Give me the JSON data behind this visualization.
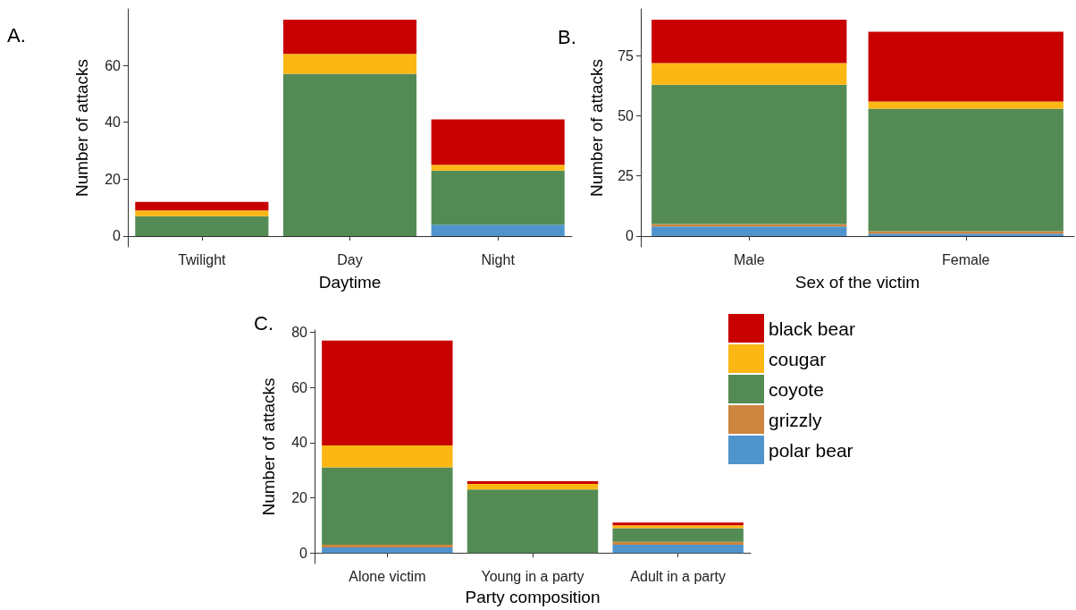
{
  "chart_data": [
    {
      "type": "bar",
      "stacked": true,
      "annotations": [
        "A."
      ],
      "xlabel": "Daytime",
      "ylabel": "Number of attacks",
      "categories": [
        "Twilight",
        "Day",
        "Night"
      ],
      "ylim": [
        -3.8,
        79.8
      ],
      "yticks": [
        0,
        20,
        40,
        60
      ],
      "grid": false,
      "legend": false,
      "series": [
        {
          "color": "#4f94cd",
          "values": [
            0,
            0,
            4
          ]
        },
        {
          "color": "#cd853f",
          "values": [
            0,
            0,
            0
          ]
        },
        {
          "color": "#548b54",
          "values": [
            7,
            57,
            19
          ]
        },
        {
          "color": "#fdb714",
          "values": [
            2,
            7,
            2
          ]
        },
        {
          "color": "#c80000",
          "values": [
            3,
            12,
            16
          ]
        }
      ]
    },
    {
      "type": "bar",
      "stacked": true,
      "annotations": [
        "B."
      ],
      "xlabel": "Sex of the victim",
      "ylabel": "Number of attacks",
      "categories": [
        "Male",
        "Female"
      ],
      "ylim": [
        -4.5,
        94.5
      ],
      "yticks": [
        0,
        25,
        50,
        75
      ],
      "grid": false,
      "legend": false,
      "series": [
        {
          "color": "#4f94cd",
          "values": [
            4,
            1
          ]
        },
        {
          "color": "#cd853f",
          "values": [
            1,
            1
          ]
        },
        {
          "color": "#548b54",
          "values": [
            58,
            51
          ]
        },
        {
          "color": "#fdb714",
          "values": [
            9,
            3
          ]
        },
        {
          "color": "#c80000",
          "values": [
            18,
            29
          ]
        }
      ]
    },
    {
      "type": "bar",
      "stacked": true,
      "annotations": [
        "C."
      ],
      "xlabel": "Party composition",
      "ylabel": "Number of attacks",
      "categories": [
        "Alone victim",
        "Young in a party",
        "Adult in a party"
      ],
      "ylim": [
        -3.85,
        80.85
      ],
      "yticks": [
        0,
        20,
        40,
        60,
        80
      ],
      "grid": false,
      "legend": "right",
      "series": [
        {
          "name": "polar bear",
          "color": "#4f94cd",
          "values": [
            2,
            0,
            3
          ]
        },
        {
          "name": "grizzly",
          "color": "#cd853f",
          "values": [
            1,
            0,
            1
          ]
        },
        {
          "name": "coyote",
          "color": "#548b54",
          "values": [
            28,
            23,
            5
          ]
        },
        {
          "name": "cougar",
          "color": "#fdb714",
          "values": [
            8,
            2,
            1
          ]
        },
        {
          "name": "black bear",
          "color": "#c80000",
          "values": [
            38,
            1,
            1
          ]
        }
      ]
    }
  ]
}
